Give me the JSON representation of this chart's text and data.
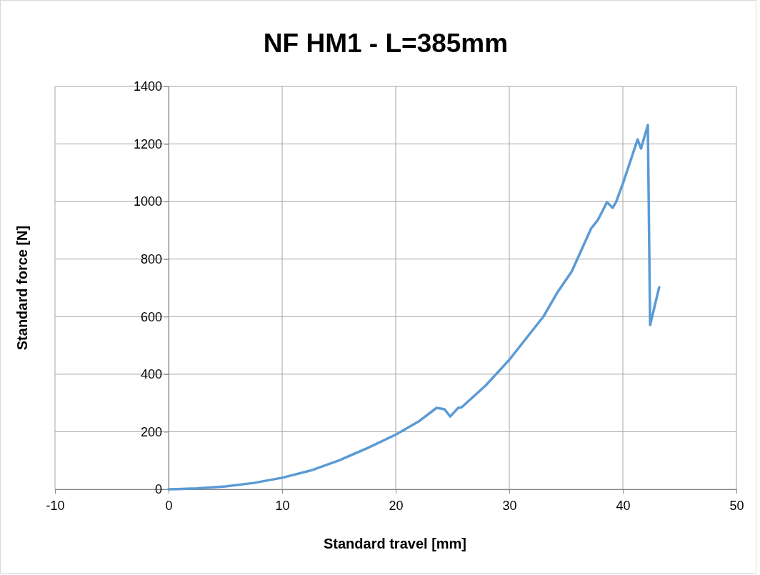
{
  "chart_data": {
    "type": "line",
    "title": "NF HM1 - L=385mm",
    "xlabel": "Standard travel [mm]",
    "ylabel": "Standard force [N]",
    "xlim": [
      -10,
      50
    ],
    "xticks": [
      -10,
      0,
      10,
      20,
      30,
      40,
      50
    ],
    "ylim": [
      0,
      1400
    ],
    "yticks": [
      0,
      200,
      400,
      600,
      800,
      1000,
      1200,
      1400
    ],
    "grid": true,
    "marker": "none",
    "line_style": "solid",
    "series": [
      {
        "color": "#5b9bd5",
        "x": [
          0,
          2.5,
          5,
          7.5,
          10,
          12.5,
          15,
          17.5,
          20,
          22,
          23.6,
          24.3,
          24.8,
          25.5,
          25.8,
          27.9,
          30,
          33,
          34.2,
          35.5,
          37.2,
          37.8,
          38.6,
          39.1,
          39.4,
          40,
          41.3,
          41.6,
          42.2,
          42.4,
          43.2
        ],
        "values": [
          0,
          3,
          10,
          22,
          40,
          65,
          100,
          143,
          190,
          235,
          283,
          278,
          253,
          283,
          285,
          360,
          450,
          600,
          682,
          757,
          906,
          936,
          998,
          978,
          998,
          1062,
          1216,
          1184,
          1266,
          571,
          702
        ]
      }
    ]
  }
}
